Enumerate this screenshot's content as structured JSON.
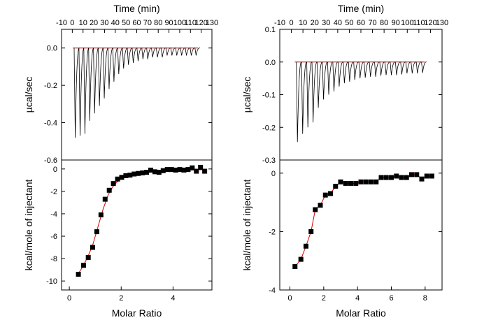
{
  "chart_data": [
    {
      "panel": "left",
      "type": "line",
      "role": "raw-thermogram",
      "xlabel": "Time (min)",
      "ylabel": "µcal/sec",
      "xlim": [
        -10,
        130
      ],
      "ylim": [
        -0.6,
        0.1
      ],
      "xticks": [
        -10,
        0,
        10,
        20,
        30,
        40,
        50,
        60,
        70,
        80,
        90,
        100,
        110,
        120,
        130
      ],
      "yticks": [
        0.0,
        -0.2,
        -0.4,
        -0.6
      ],
      "baseline": 0.0,
      "baseline_color": "#d40000",
      "trace_color": "#000000",
      "peak_times": [
        2.5,
        7,
        11.5,
        16,
        20.5,
        25,
        29.5,
        34,
        38.5,
        43,
        47.5,
        52,
        56.5,
        61,
        65.5,
        70,
        74.5,
        79,
        83.5,
        88,
        92.5,
        97,
        101.5,
        106,
        110.5,
        115
      ],
      "peak_minima": [
        -0.48,
        -0.47,
        -0.46,
        -0.39,
        -0.35,
        -0.31,
        -0.27,
        -0.22,
        -0.18,
        -0.14,
        -0.11,
        -0.09,
        -0.08,
        -0.07,
        -0.06,
        -0.06,
        -0.05,
        -0.05,
        -0.05,
        -0.04,
        -0.04,
        -0.04,
        -0.04,
        -0.04,
        -0.04,
        -0.04
      ]
    },
    {
      "panel": "left",
      "type": "scatter",
      "role": "binding-isotherm",
      "xlabel": "Molar Ratio",
      "ylabel": "kcal/mole of injectant",
      "xlim": [
        -0.3,
        5.5
      ],
      "ylim": [
        -10.8,
        0.8
      ],
      "xticks": [
        0,
        2,
        4
      ],
      "yticks": [
        0,
        -2,
        -4,
        -6,
        -8,
        -10
      ],
      "marker_color": "#000000",
      "fit_color": "#d40000",
      "x": [
        0.35,
        0.55,
        0.73,
        0.9,
        1.06,
        1.22,
        1.38,
        1.54,
        1.7,
        1.86,
        2.02,
        2.18,
        2.34,
        2.5,
        2.66,
        2.82,
        2.98,
        3.14,
        3.3,
        3.46,
        3.62,
        3.78,
        3.94,
        4.1,
        4.26,
        4.42,
        4.58,
        4.74,
        4.9,
        5.06,
        5.22
      ],
      "y": [
        -9.4,
        -8.6,
        -7.9,
        -7.0,
        -5.6,
        -4.1,
        -2.7,
        -1.9,
        -1.3,
        -0.9,
        -0.75,
        -0.6,
        -0.55,
        -0.45,
        -0.4,
        -0.35,
        -0.3,
        -0.1,
        -0.25,
        -0.3,
        -0.15,
        -0.05,
        -0.05,
        -0.1,
        -0.05,
        -0.1,
        -0.05,
        0.1,
        -0.2,
        0.15,
        -0.2
      ],
      "fit_x": [
        0.3,
        0.5,
        0.7,
        0.9,
        1.1,
        1.3,
        1.5,
        1.7,
        1.9,
        2.1,
        2.3,
        2.6,
        3.0,
        3.5,
        4.0,
        4.5,
        5.0,
        5.3
      ],
      "fit_y": [
        -9.5,
        -8.8,
        -7.9,
        -6.8,
        -5.2,
        -3.6,
        -2.3,
        -1.5,
        -1.0,
        -0.75,
        -0.6,
        -0.45,
        -0.32,
        -0.22,
        -0.15,
        -0.1,
        -0.07,
        -0.06
      ]
    },
    {
      "panel": "right",
      "type": "line",
      "role": "raw-thermogram",
      "xlabel": "Time (min)",
      "ylabel": "µcal/sec",
      "xlim": [
        -10,
        130
      ],
      "ylim": [
        -0.3,
        0.1
      ],
      "xticks": [
        -10,
        0,
        10,
        20,
        30,
        40,
        50,
        60,
        70,
        80,
        90,
        100,
        110,
        120,
        130
      ],
      "yticks": [
        0.1,
        0.0,
        -0.1,
        -0.2,
        -0.3
      ],
      "baseline": 0.0,
      "baseline_color": "#d40000",
      "trace_color": "#000000",
      "peak_times": [
        5,
        9.5,
        14,
        18.5,
        23,
        27.5,
        32,
        36.5,
        41,
        45.5,
        50,
        54.5,
        59,
        63.5,
        68,
        72.5,
        77,
        81.5,
        86,
        90.5,
        95,
        99.5,
        104,
        108.5,
        113
      ],
      "peak_minima": [
        -0.245,
        -0.22,
        -0.2,
        -0.185,
        -0.14,
        -0.115,
        -0.1,
        -0.09,
        -0.075,
        -0.065,
        -0.06,
        -0.055,
        -0.05,
        -0.048,
        -0.045,
        -0.045,
        -0.042,
        -0.04,
        -0.04,
        -0.04,
        -0.038,
        -0.035,
        -0.035,
        -0.035,
        -0.033
      ]
    },
    {
      "panel": "right",
      "type": "scatter",
      "role": "binding-isotherm",
      "xlabel": "Molar Ratio",
      "ylabel": "kcal/mole of injectant",
      "xlim": [
        -0.6,
        9.0
      ],
      "ylim": [
        -4.0,
        0.45
      ],
      "xticks": [
        0,
        2,
        4,
        6,
        8
      ],
      "yticks": [
        0,
        -2,
        -4
      ],
      "marker_color": "#000000",
      "fit_color": "#d40000",
      "x": [
        0.3,
        0.65,
        0.95,
        1.25,
        1.5,
        1.8,
        2.1,
        2.4,
        2.7,
        3.0,
        3.3,
        3.6,
        3.9,
        4.2,
        4.5,
        4.8,
        5.1,
        5.4,
        5.7,
        6.0,
        6.3,
        6.6,
        6.9,
        7.2,
        7.5,
        7.8,
        8.1,
        8.4
      ],
      "y": [
        -3.2,
        -2.95,
        -2.5,
        -2.0,
        -1.25,
        -1.1,
        -0.75,
        -0.7,
        -0.45,
        -0.3,
        -0.35,
        -0.35,
        -0.35,
        -0.3,
        -0.3,
        -0.3,
        -0.3,
        -0.15,
        -0.15,
        -0.15,
        -0.1,
        -0.15,
        -0.15,
        -0.05,
        -0.05,
        -0.2,
        -0.1,
        -0.1
      ]
    }
  ]
}
